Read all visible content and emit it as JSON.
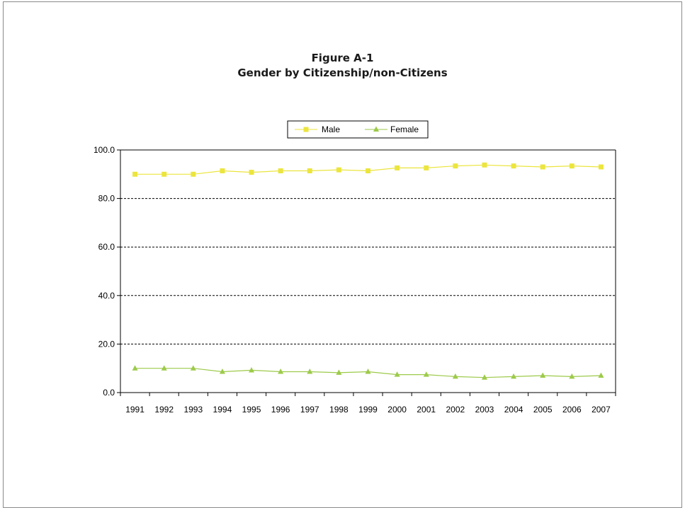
{
  "chart_data": {
    "type": "line",
    "title": "Figure A-1",
    "subtitle": "Gender by Citizenship/non-Citizens",
    "xlabel": "",
    "ylabel": "",
    "categories": [
      "1991",
      "1992",
      "1993",
      "1994",
      "1995",
      "1996",
      "1997",
      "1998",
      "1999",
      "2000",
      "2001",
      "2002",
      "2003",
      "2004",
      "2005",
      "2006",
      "2007"
    ],
    "ylim": [
      0,
      100
    ],
    "yticks": [
      "0.0",
      "20.0",
      "40.0",
      "60.0",
      "80.0",
      "100.0"
    ],
    "ytick_values": [
      0,
      20,
      40,
      60,
      80,
      100
    ],
    "grid": "horizontal dashed",
    "legend": "top-center",
    "series": [
      {
        "name": "Male",
        "marker": "square",
        "color": "#ebe53e",
        "values": [
          90.0,
          90.0,
          90.0,
          91.4,
          90.8,
          91.4,
          91.4,
          91.8,
          91.4,
          92.6,
          92.6,
          93.4,
          93.8,
          93.4,
          93.0,
          93.4,
          93.0
        ]
      },
      {
        "name": "Female",
        "marker": "triangle",
        "color": "#9dca4a",
        "values": [
          10.0,
          10.0,
          10.0,
          8.6,
          9.2,
          8.6,
          8.6,
          8.2,
          8.6,
          7.4,
          7.4,
          6.6,
          6.2,
          6.6,
          7.0,
          6.6,
          7.0
        ]
      }
    ]
  }
}
